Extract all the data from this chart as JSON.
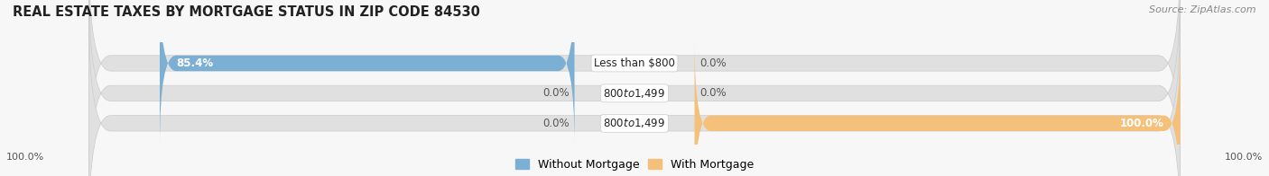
{
  "title": "REAL ESTATE TAXES BY MORTGAGE STATUS IN ZIP CODE 84530",
  "source": "Source: ZipAtlas.com",
  "rows": [
    {
      "label": "Less than $800",
      "without_mortgage": 85.4,
      "with_mortgage": 0.0
    },
    {
      "label": "$800 to $1,499",
      "without_mortgage": 0.0,
      "with_mortgage": 0.0
    },
    {
      "label": "$800 to $1,499",
      "without_mortgage": 0.0,
      "with_mortgage": 100.0
    }
  ],
  "color_without": "#7bafd4",
  "color_with": "#f5c07a",
  "label_without": "Without Mortgage",
  "label_with": "With Mortgage",
  "bar_bg_color": "#e0e0e0",
  "title_fontsize": 10.5,
  "source_fontsize": 8,
  "bar_label_fontsize": 8.5,
  "pct_fontsize": 8.5,
  "legend_fontsize": 9,
  "axis_left_label": "100.0%",
  "axis_right_label": "100.0%",
  "fig_bg_color": "#f7f7f7"
}
